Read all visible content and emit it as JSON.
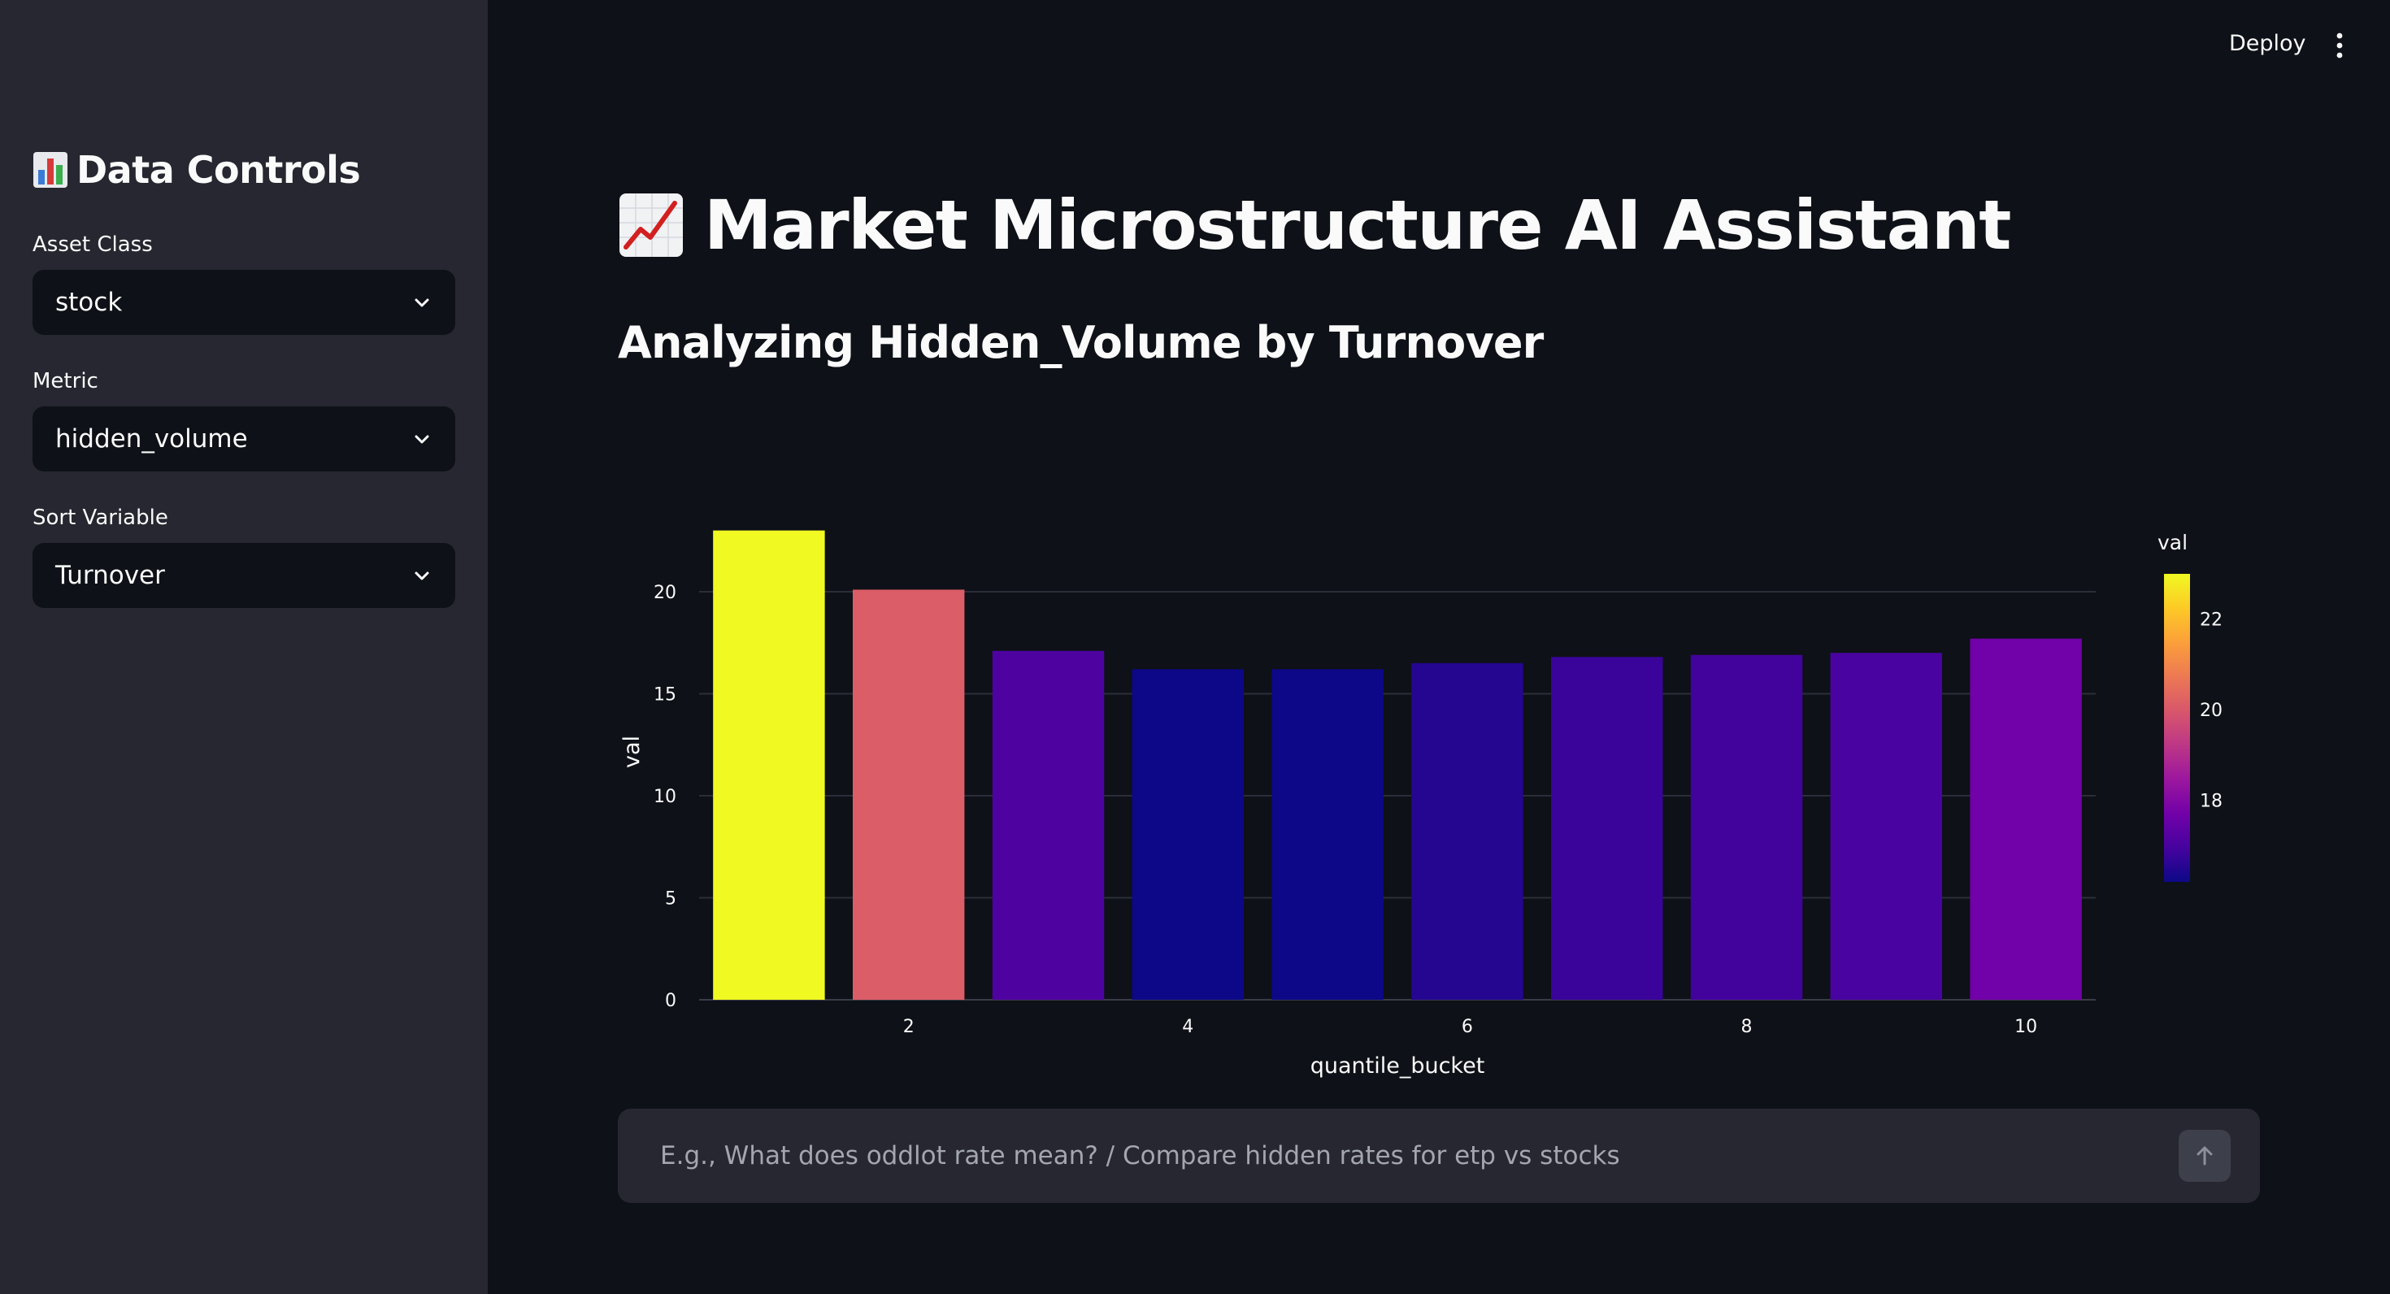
{
  "header": {
    "deploy_label": "Deploy",
    "menu_icon": "kebab-menu-icon"
  },
  "sidebar": {
    "title": "Data Controls",
    "title_icon": "bar-chart-emoji-icon",
    "fields": [
      {
        "label": "Asset Class",
        "value": "stock"
      },
      {
        "label": "Metric",
        "value": "hidden_volume"
      },
      {
        "label": "Sort Variable",
        "value": "Turnover"
      }
    ]
  },
  "main": {
    "title": "Market Microstructure AI Assistant",
    "title_icon": "chart-increasing-emoji-icon",
    "subtitle": "Analyzing Hidden_Volume by Turnover"
  },
  "chat": {
    "placeholder": "E.g., What does oddlot rate mean? / Compare hidden rates for etp vs stocks",
    "send_icon": "arrow-up-icon"
  },
  "colors": {
    "sidebar_bg": "#262730",
    "app_bg": "#0e1117",
    "colorscale": [
      "#0d0887",
      "#46039f",
      "#7201a8",
      "#9c179e",
      "#bd3786",
      "#d8576b",
      "#ed7953",
      "#fb9f3a",
      "#fdca26",
      "#f0f921"
    ]
  },
  "chart_data": {
    "type": "bar",
    "x": [
      1,
      2,
      3,
      4,
      5,
      6,
      7,
      8,
      9,
      10
    ],
    "values": [
      23.0,
      20.1,
      17.1,
      16.2,
      16.2,
      16.5,
      16.8,
      16.9,
      17.0,
      17.7
    ],
    "xlabel": "quantile_bucket",
    "ylabel": "val",
    "x_ticks": [
      2,
      4,
      6,
      8,
      10
    ],
    "y_ticks": [
      0,
      5,
      10,
      15,
      20
    ],
    "ylim": [
      0,
      24.3
    ],
    "grid": true,
    "colorbar": {
      "title": "val",
      "range": [
        16.2,
        23.0
      ],
      "ticks": [
        18,
        20,
        22
      ],
      "colorscale": "Plasma",
      "placement": "right"
    }
  }
}
